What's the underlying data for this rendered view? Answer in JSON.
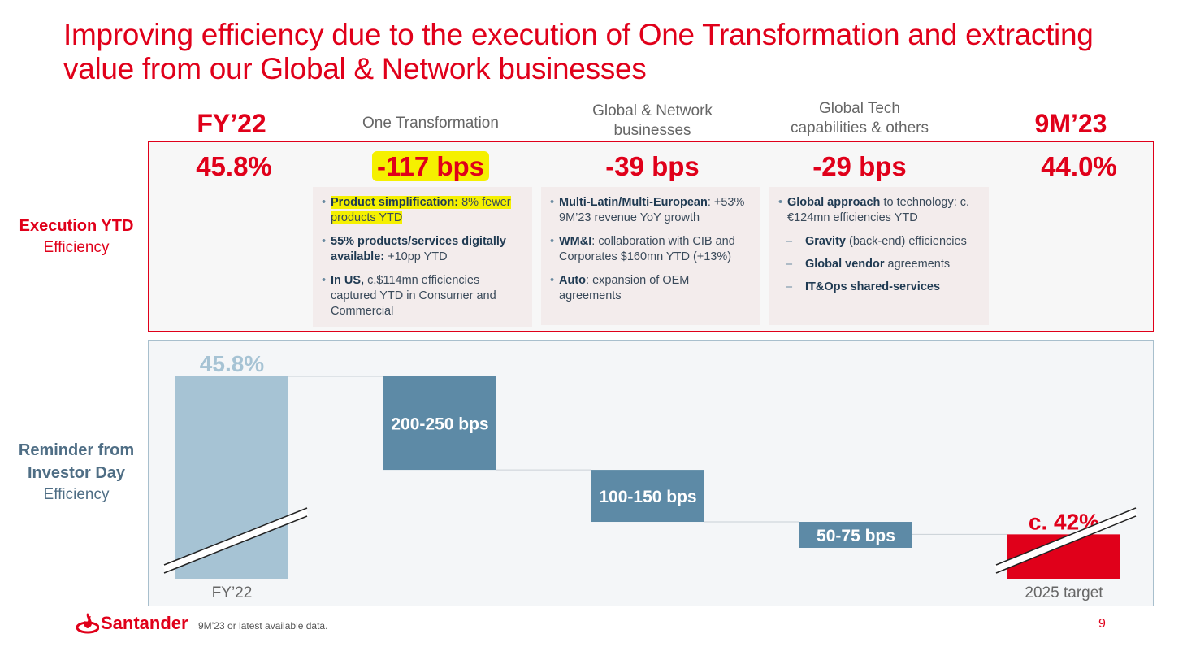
{
  "title": "Improving efficiency due to the execution of One Transformation and extracting value from our Global & Network businesses",
  "headers": {
    "fy22": "FY’22",
    "one_transformation": "One Transformation",
    "global_network": "Global & Network businesses",
    "global_tech": "Global Tech capabilities & others",
    "nm23": "9M’23"
  },
  "execution": {
    "label": "Execution YTD",
    "sublabel": "Efficiency",
    "fy22_value": "45.8%",
    "one_transformation_value": "-117 bps",
    "global_network_value": "-39 bps",
    "global_tech_value": "-29 bps",
    "nm23_value": "44.0%",
    "cards": {
      "one_transformation": {
        "b1_bold": "Product simplification:",
        "b1_text": " 8% fewer products YTD",
        "b2_bold": "55% products/services digitally available:",
        "b2_text": " +10pp YTD",
        "b3_bold": "In US,",
        "b3_text": " c.$114mn efficiencies captured YTD in Consumer and Commercial"
      },
      "global_network": {
        "b1_bold": "Multi-Latin/Multi-European",
        "b1_text": ": +53% 9M’23 revenue YoY growth",
        "b2_bold": "WM&I",
        "b2_text": ": collaboration with CIB and Corporates $160mn YTD (+13%)",
        "b3_bold": "Auto",
        "b3_text": ": expansion of OEM agreements"
      },
      "global_tech": {
        "b1_bold": "Global approach",
        "b1_text": " to technology: c.€124mn efficiencies YTD",
        "s1_bold": "Gravity",
        "s1_text": " (back-end) efficiencies",
        "s2_bold": "Global vendor",
        "s2_text": " agreements",
        "s3_bold": "IT&Ops shared-services",
        "s3_text": ""
      }
    }
  },
  "investor_day": {
    "label_line1": "Reminder from",
    "label_line2": "Investor Day",
    "sublabel": "Efficiency"
  },
  "chart_data": {
    "type": "bar",
    "subtype": "waterfall",
    "categories": [
      "FY’22",
      "One Transformation",
      "Global & Network businesses",
      "Global Tech capabilities & others",
      "2025 target"
    ],
    "x_labels": {
      "start": "FY’22",
      "end": "2025 target"
    },
    "start_label": "45.8%",
    "step_labels": [
      "200-250 bps",
      "100-150 bps",
      "50-75 bps"
    ],
    "end_label": "c. 42%",
    "values": [
      45.8,
      -2.25,
      -1.25,
      -0.625,
      42
    ],
    "axis_break": true
  },
  "footer": {
    "brand": "Santander",
    "note": "9M’23 or latest available data.",
    "page": "9"
  },
  "colors": {
    "red": "#e0001a",
    "start_bar": "#a6c3d4",
    "step_bar": "#5d8aa6",
    "highlight": "#f5f000"
  }
}
